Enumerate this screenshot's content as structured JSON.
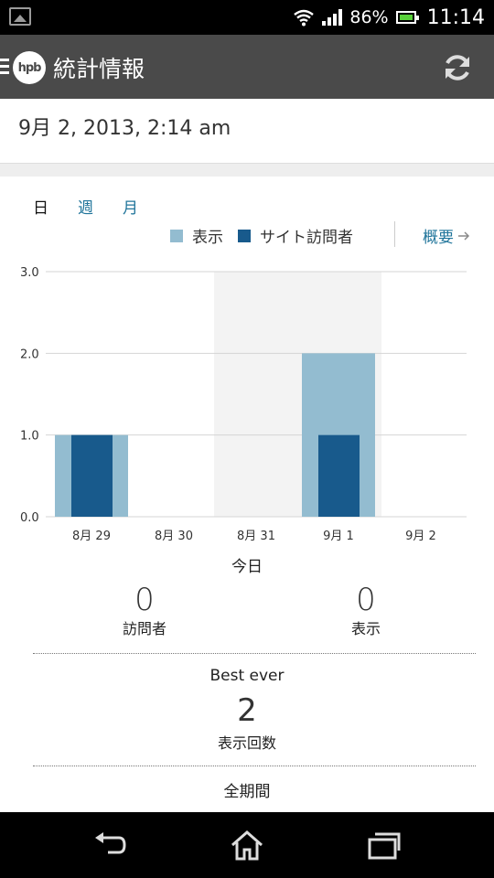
{
  "status_bar": {
    "battery_percent": "86%",
    "time": "11:14"
  },
  "action_bar": {
    "logo_text": "hpb",
    "title": "統計情報"
  },
  "date": "9月 2, 2013, 2:14 am",
  "tabs": [
    {
      "label": "日",
      "active": true
    },
    {
      "label": "週",
      "active": false
    },
    {
      "label": "月",
      "active": false
    }
  ],
  "legend": {
    "views": "表示",
    "visitors": "サイト訪問者",
    "views_color": "#93bcd0",
    "visitors_color": "#185a8c"
  },
  "overview_link": "概要",
  "chart_data": {
    "type": "bar",
    "categories": [
      "8月 29",
      "8月 30",
      "8月 31",
      "9月 1",
      "9月 2"
    ],
    "series": [
      {
        "name": "表示",
        "values": [
          1,
          0,
          0,
          2,
          0
        ]
      },
      {
        "name": "サイト訪問者",
        "values": [
          1,
          0,
          0,
          1,
          0
        ]
      }
    ],
    "yticks": [
      "0.0",
      "1.0",
      "2.0",
      "3.0"
    ],
    "ylim": [
      0,
      3
    ],
    "highlighted_category": "8月 31",
    "grid": true
  },
  "today": {
    "label": "今日",
    "visitors_value": "0",
    "visitors_label": "訪問者",
    "views_value": "0",
    "views_label": "表示"
  },
  "best_ever": {
    "label": "Best ever",
    "value": "2",
    "sublabel": "表示回数"
  },
  "all_period_label": "全期間"
}
